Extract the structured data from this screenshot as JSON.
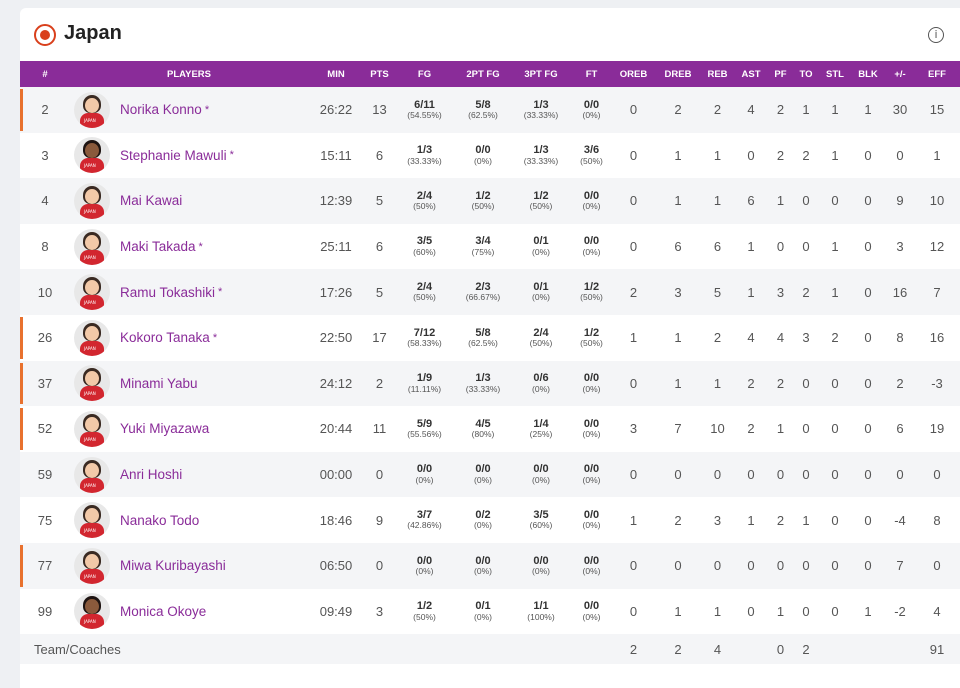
{
  "team": {
    "name": "Japan"
  },
  "columns": [
    "#",
    "PLAYERS",
    "MIN",
    "PTS",
    "FG",
    "2PT FG",
    "3PT FG",
    "FT",
    "OREB",
    "DREB",
    "REB",
    "AST",
    "PF",
    "TO",
    "STL",
    "BLK",
    "+/-",
    "EFF"
  ],
  "players": [
    {
      "num": "2",
      "name": "Norika Konno",
      "starter": true,
      "bar": true,
      "min": "26:22",
      "pts": "13",
      "fg": [
        "6/11",
        "(54.55%)"
      ],
      "fg2": [
        "5/8",
        "(62.5%)"
      ],
      "fg3": [
        "1/3",
        "(33.33%)"
      ],
      "ft": [
        "0/0",
        "(0%)"
      ],
      "oreb": "0",
      "dreb": "2",
      "reb": "2",
      "ast": "4",
      "pf": "2",
      "to": "1",
      "stl": "1",
      "blk": "1",
      "pm": "30",
      "eff": "15"
    },
    {
      "num": "3",
      "name": "Stephanie Mawuli",
      "starter": true,
      "bar": false,
      "min": "15:11",
      "pts": "6",
      "fg": [
        "1/3",
        "(33.33%)"
      ],
      "fg2": [
        "0/0",
        "(0%)"
      ],
      "fg3": [
        "1/3",
        "(33.33%)"
      ],
      "ft": [
        "3/6",
        "(50%)"
      ],
      "oreb": "0",
      "dreb": "1",
      "reb": "1",
      "ast": "0",
      "pf": "2",
      "to": "2",
      "stl": "1",
      "blk": "0",
      "pm": "0",
      "eff": "1",
      "dark": true
    },
    {
      "num": "4",
      "name": "Mai Kawai",
      "starter": false,
      "bar": false,
      "min": "12:39",
      "pts": "5",
      "fg": [
        "2/4",
        "(50%)"
      ],
      "fg2": [
        "1/2",
        "(50%)"
      ],
      "fg3": [
        "1/2",
        "(50%)"
      ],
      "ft": [
        "0/0",
        "(0%)"
      ],
      "oreb": "0",
      "dreb": "1",
      "reb": "1",
      "ast": "6",
      "pf": "1",
      "to": "0",
      "stl": "0",
      "blk": "0",
      "pm": "9",
      "eff": "10"
    },
    {
      "num": "8",
      "name": "Maki Takada",
      "starter": true,
      "bar": false,
      "min": "25:11",
      "pts": "6",
      "fg": [
        "3/5",
        "(60%)"
      ],
      "fg2": [
        "3/4",
        "(75%)"
      ],
      "fg3": [
        "0/1",
        "(0%)"
      ],
      "ft": [
        "0/0",
        "(0%)"
      ],
      "oreb": "0",
      "dreb": "6",
      "reb": "6",
      "ast": "1",
      "pf": "0",
      "to": "0",
      "stl": "1",
      "blk": "0",
      "pm": "3",
      "eff": "12"
    },
    {
      "num": "10",
      "name": "Ramu Tokashiki",
      "starter": true,
      "bar": false,
      "min": "17:26",
      "pts": "5",
      "fg": [
        "2/4",
        "(50%)"
      ],
      "fg2": [
        "2/3",
        "(66.67%)"
      ],
      "fg3": [
        "0/1",
        "(0%)"
      ],
      "ft": [
        "1/2",
        "(50%)"
      ],
      "oreb": "2",
      "dreb": "3",
      "reb": "5",
      "ast": "1",
      "pf": "3",
      "to": "2",
      "stl": "1",
      "blk": "0",
      "pm": "16",
      "eff": "7"
    },
    {
      "num": "26",
      "name": "Kokoro Tanaka",
      "starter": true,
      "bar": true,
      "min": "22:50",
      "pts": "17",
      "fg": [
        "7/12",
        "(58.33%)"
      ],
      "fg2": [
        "5/8",
        "(62.5%)"
      ],
      "fg3": [
        "2/4",
        "(50%)"
      ],
      "ft": [
        "1/2",
        "(50%)"
      ],
      "oreb": "1",
      "dreb": "1",
      "reb": "2",
      "ast": "4",
      "pf": "4",
      "to": "3",
      "stl": "2",
      "blk": "0",
      "pm": "8",
      "eff": "16"
    },
    {
      "num": "37",
      "name": "Minami Yabu",
      "starter": false,
      "bar": true,
      "min": "24:12",
      "pts": "2",
      "fg": [
        "1/9",
        "(11.11%)"
      ],
      "fg2": [
        "1/3",
        "(33.33%)"
      ],
      "fg3": [
        "0/6",
        "(0%)"
      ],
      "ft": [
        "0/0",
        "(0%)"
      ],
      "oreb": "0",
      "dreb": "1",
      "reb": "1",
      "ast": "2",
      "pf": "2",
      "to": "0",
      "stl": "0",
      "blk": "0",
      "pm": "2",
      "eff": "-3"
    },
    {
      "num": "52",
      "name": "Yuki Miyazawa",
      "starter": false,
      "bar": true,
      "min": "20:44",
      "pts": "11",
      "fg": [
        "5/9",
        "(55.56%)"
      ],
      "fg2": [
        "4/5",
        "(80%)"
      ],
      "fg3": [
        "1/4",
        "(25%)"
      ],
      "ft": [
        "0/0",
        "(0%)"
      ],
      "oreb": "3",
      "dreb": "7",
      "reb": "10",
      "ast": "2",
      "pf": "1",
      "to": "0",
      "stl": "0",
      "blk": "0",
      "pm": "6",
      "eff": "19"
    },
    {
      "num": "59",
      "name": "Anri Hoshi",
      "starter": false,
      "bar": false,
      "min": "00:00",
      "pts": "0",
      "fg": [
        "0/0",
        "(0%)"
      ],
      "fg2": [
        "0/0",
        "(0%)"
      ],
      "fg3": [
        "0/0",
        "(0%)"
      ],
      "ft": [
        "0/0",
        "(0%)"
      ],
      "oreb": "0",
      "dreb": "0",
      "reb": "0",
      "ast": "0",
      "pf": "0",
      "to": "0",
      "stl": "0",
      "blk": "0",
      "pm": "0",
      "eff": "0"
    },
    {
      "num": "75",
      "name": "Nanako Todo",
      "starter": false,
      "bar": false,
      "min": "18:46",
      "pts": "9",
      "fg": [
        "3/7",
        "(42.86%)"
      ],
      "fg2": [
        "0/2",
        "(0%)"
      ],
      "fg3": [
        "3/5",
        "(60%)"
      ],
      "ft": [
        "0/0",
        "(0%)"
      ],
      "oreb": "1",
      "dreb": "2",
      "reb": "3",
      "ast": "1",
      "pf": "2",
      "to": "1",
      "stl": "0",
      "blk": "0",
      "pm": "-4",
      "eff": "8"
    },
    {
      "num": "77",
      "name": "Miwa Kuribayashi",
      "starter": false,
      "bar": true,
      "min": "06:50",
      "pts": "0",
      "fg": [
        "0/0",
        "(0%)"
      ],
      "fg2": [
        "0/0",
        "(0%)"
      ],
      "fg3": [
        "0/0",
        "(0%)"
      ],
      "ft": [
        "0/0",
        "(0%)"
      ],
      "oreb": "0",
      "dreb": "0",
      "reb": "0",
      "ast": "0",
      "pf": "0",
      "to": "0",
      "stl": "0",
      "blk": "0",
      "pm": "7",
      "eff": "0"
    },
    {
      "num": "99",
      "name": "Monica Okoye",
      "starter": false,
      "bar": false,
      "min": "09:49",
      "pts": "3",
      "fg": [
        "1/2",
        "(50%)"
      ],
      "fg2": [
        "0/1",
        "(0%)"
      ],
      "fg3": [
        "1/1",
        "(100%)"
      ],
      "ft": [
        "0/0",
        "(0%)"
      ],
      "oreb": "0",
      "dreb": "1",
      "reb": "1",
      "ast": "0",
      "pf": "1",
      "to": "0",
      "stl": "0",
      "blk": "1",
      "pm": "-2",
      "eff": "4",
      "dark": true
    }
  ],
  "team_row": {
    "label": "Team/Coaches",
    "oreb": "2",
    "dreb": "2",
    "reb": "4",
    "pf": "0",
    "to": "2",
    "eff": "91"
  },
  "colors": {
    "header_bg": "#8a2c99",
    "player_link": "#8a2c99",
    "starter_bar": "#e8712e",
    "flag_red": "#d9401c"
  }
}
